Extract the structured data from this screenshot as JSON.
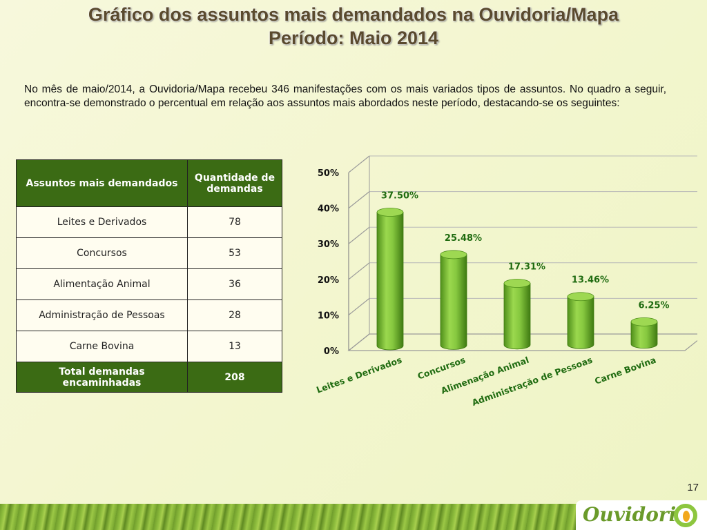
{
  "title_line1": "Gráfico dos assuntos mais demandados na Ouvidoria/Mapa",
  "title_line2": "Período: Maio 2014",
  "intro": "No mês de maio/2014, a Ouvidoria/Mapa recebeu 346 manifestações com os mais variados tipos de assuntos. No quadro a seguir, encontra-se demonstrado o percentual em relação aos assuntos mais abordados neste período, destacando-se os seguintes:",
  "table": {
    "headers": [
      "Assuntos mais demandados",
      "Quantidade de demandas"
    ],
    "rows": [
      {
        "subject": "Leites e Derivados",
        "count": "78"
      },
      {
        "subject": "Concursos",
        "count": "53"
      },
      {
        "subject": "Alimentação Animal",
        "count": "36"
      },
      {
        "subject": "Administração de Pessoas",
        "count": "28"
      },
      {
        "subject": "Carne Bovina",
        "count": "13"
      }
    ],
    "total_label": "Total demandas encaminhadas",
    "total_value": "208"
  },
  "chart_data": {
    "type": "bar",
    "categories": [
      "Leites e Derivados",
      "Concursos",
      "Alimenação Animal",
      "Administração de Pessoas",
      "Carne Bovina"
    ],
    "values": [
      37.5,
      25.48,
      17.31,
      13.46,
      6.25
    ],
    "data_labels": [
      "37.50%",
      "25.48%",
      "17.31%",
      "13.46%",
      "6.25%"
    ],
    "y_ticks": [
      "0%",
      "10%",
      "20%",
      "30%",
      "40%",
      "50%"
    ],
    "ylim": [
      0,
      50
    ],
    "grid": true,
    "bar_color": "#7fc13a",
    "label_color": "#1f6b10"
  },
  "page_number": "17",
  "logo_text": "Ouvidoria"
}
